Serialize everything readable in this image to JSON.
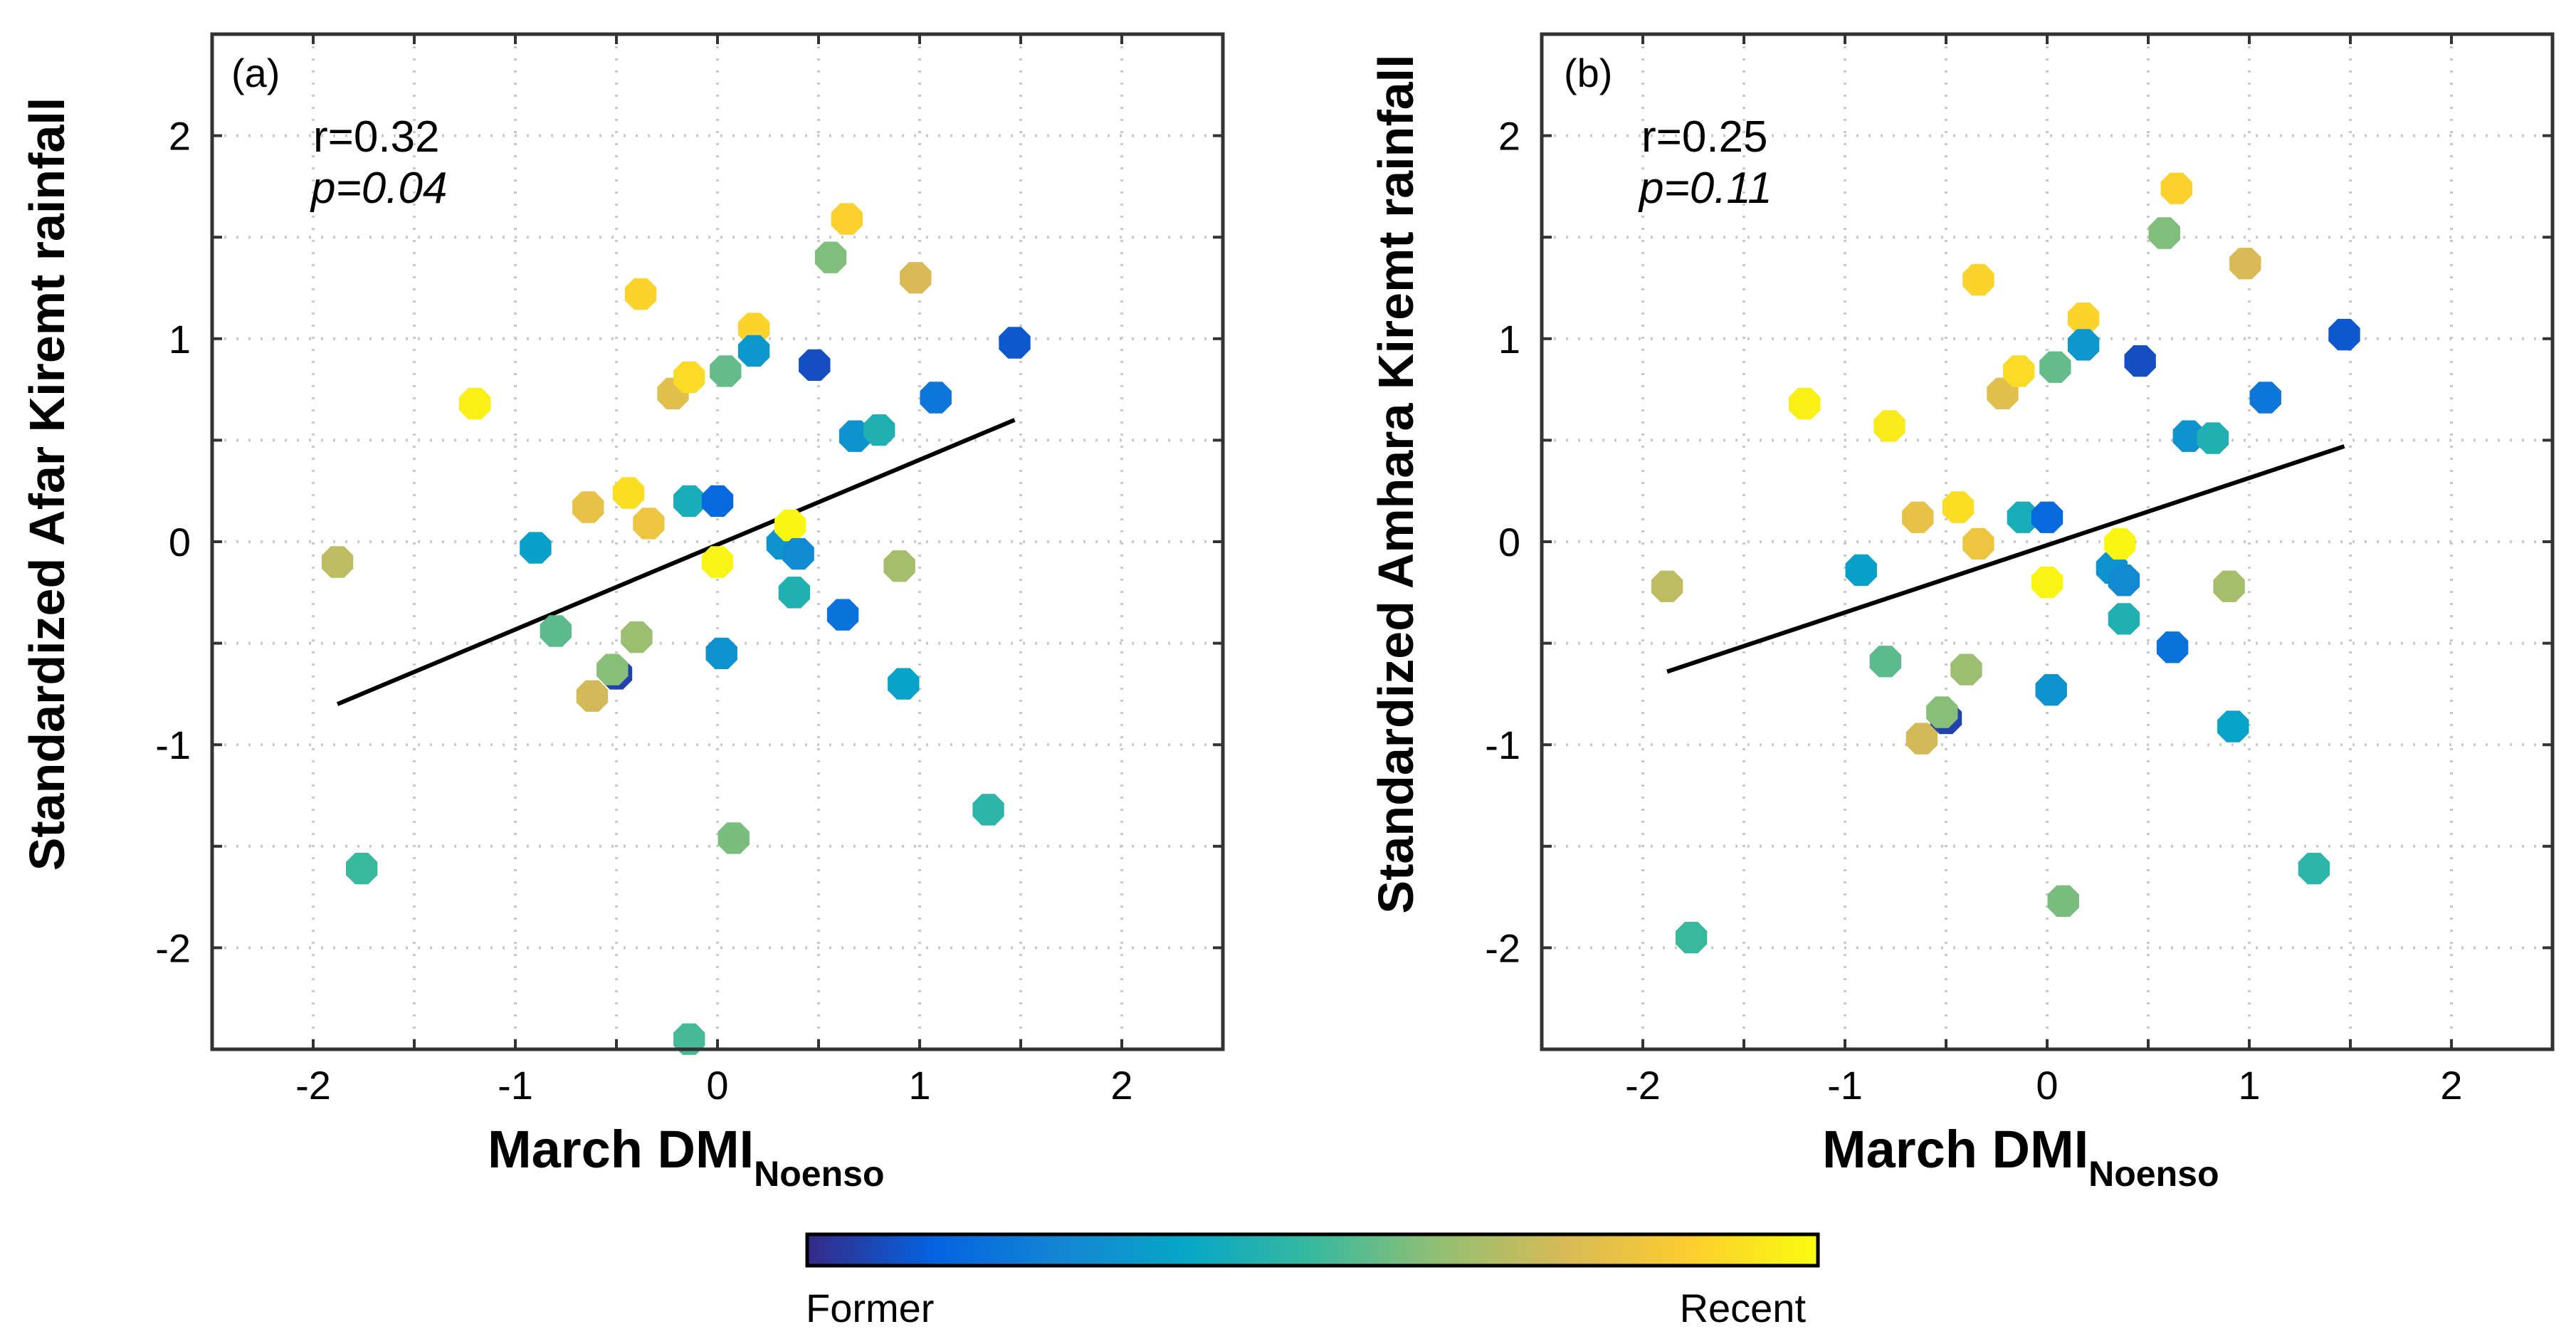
{
  "chart_data": [
    {
      "type": "scatter",
      "panel_label": "(a)",
      "xlabel": "March DMI",
      "xlabel_subscript": "Noenso",
      "ylabel": "Standardized Afar Kiremt rainfall",
      "stats": {
        "r": "r=0.32",
        "p": "p=0.04"
      },
      "xlim": [
        -2.5,
        2.5
      ],
      "ylim": [
        -2.5,
        2.5
      ],
      "xticks": [
        -2,
        -1,
        0,
        1,
        2
      ],
      "yticks": [
        -2,
        -1,
        0,
        1,
        2
      ],
      "grid": true,
      "fit_line": {
        "x": [
          -1.88,
          1.47
        ],
        "y": [
          -0.8,
          0.6
        ]
      },
      "points": [
        {
          "x": -1.88,
          "y": -0.1,
          "t": 0.7
        },
        {
          "x": -1.76,
          "y": -1.61,
          "t": 0.5
        },
        {
          "x": -1.2,
          "y": 0.68,
          "t": 0.97
        },
        {
          "x": -0.9,
          "y": -0.03,
          "t": 0.35
        },
        {
          "x": -0.8,
          "y": -0.44,
          "t": 0.55
        },
        {
          "x": -0.64,
          "y": 0.17,
          "t": 0.8
        },
        {
          "x": -0.62,
          "y": -0.76,
          "t": 0.74
        },
        {
          "x": -0.5,
          "y": -0.65,
          "t": 0.05
        },
        {
          "x": -0.52,
          "y": -0.63,
          "t": 0.61
        },
        {
          "x": -0.44,
          "y": 0.24,
          "t": 0.92
        },
        {
          "x": -0.4,
          "y": -0.47,
          "t": 0.64
        },
        {
          "x": -0.38,
          "y": 1.22,
          "t": 0.89
        },
        {
          "x": -0.34,
          "y": 0.09,
          "t": 0.82
        },
        {
          "x": -0.22,
          "y": 0.73,
          "t": 0.78
        },
        {
          "x": -0.14,
          "y": 0.81,
          "t": 0.91
        },
        {
          "x": -0.14,
          "y": 0.2,
          "t": 0.42
        },
        {
          "x": -0.14,
          "y": -2.45,
          "t": 0.52
        },
        {
          "x": 0.0,
          "y": 0.2,
          "t": 0.15
        },
        {
          "x": 0.0,
          "y": -0.1,
          "t": 0.98
        },
        {
          "x": 0.02,
          "y": -0.55,
          "t": 0.3
        },
        {
          "x": 0.04,
          "y": 0.84,
          "t": 0.56
        },
        {
          "x": 0.08,
          "y": -1.46,
          "t": 0.59
        },
        {
          "x": 0.18,
          "y": 1.05,
          "t": 0.89
        },
        {
          "x": 0.18,
          "y": 0.94,
          "t": 0.32
        },
        {
          "x": 0.32,
          "y": -0.01,
          "t": 0.3
        },
        {
          "x": 0.36,
          "y": 0.08,
          "t": 0.99
        },
        {
          "x": 0.38,
          "y": -0.25,
          "t": 0.44
        },
        {
          "x": 0.4,
          "y": -0.06,
          "t": 0.27
        },
        {
          "x": 0.48,
          "y": 0.87,
          "t": 0.08
        },
        {
          "x": 0.56,
          "y": 1.4,
          "t": 0.6
        },
        {
          "x": 0.62,
          "y": -0.36,
          "t": 0.18
        },
        {
          "x": 0.64,
          "y": 1.59,
          "t": 0.88
        },
        {
          "x": 0.68,
          "y": 0.52,
          "t": 0.3
        },
        {
          "x": 0.8,
          "y": 0.55,
          "t": 0.44
        },
        {
          "x": 0.9,
          "y": -0.12,
          "t": 0.66
        },
        {
          "x": 0.92,
          "y": -0.7,
          "t": 0.36
        },
        {
          "x": 0.98,
          "y": 1.3,
          "t": 0.75
        },
        {
          "x": 1.08,
          "y": 0.71,
          "t": 0.2
        },
        {
          "x": 1.34,
          "y": -1.32,
          "t": 0.47
        },
        {
          "x": 1.47,
          "y": 0.98,
          "t": 0.1
        }
      ]
    },
    {
      "type": "scatter",
      "panel_label": "(b)",
      "xlabel": "March DMI",
      "xlabel_subscript": "Noenso",
      "ylabel": "Standardized Amhara Kiremt rainfall",
      "stats": {
        "r": "r=0.25",
        "p": "p=0.11"
      },
      "xlim": [
        -2.5,
        2.5
      ],
      "ylim": [
        -2.5,
        2.5
      ],
      "xticks": [
        -2,
        -1,
        0,
        1,
        2
      ],
      "yticks": [
        -2,
        -1,
        0,
        1,
        2
      ],
      "grid": true,
      "fit_line": {
        "x": [
          -1.88,
          1.47
        ],
        "y": [
          -0.64,
          0.47
        ]
      },
      "points": [
        {
          "x": -1.88,
          "y": -0.22,
          "t": 0.7
        },
        {
          "x": -1.76,
          "y": -1.95,
          "t": 0.5
        },
        {
          "x": -1.2,
          "y": 0.68,
          "t": 0.97
        },
        {
          "x": -0.92,
          "y": -0.14,
          "t": 0.35
        },
        {
          "x": -0.78,
          "y": 0.57,
          "t": 0.95
        },
        {
          "x": -0.8,
          "y": -0.59,
          "t": 0.55
        },
        {
          "x": -0.64,
          "y": 0.12,
          "t": 0.8
        },
        {
          "x": -0.62,
          "y": -0.97,
          "t": 0.74
        },
        {
          "x": -0.5,
          "y": -0.87,
          "t": 0.05
        },
        {
          "x": -0.52,
          "y": -0.84,
          "t": 0.61
        },
        {
          "x": -0.44,
          "y": 0.17,
          "t": 0.92
        },
        {
          "x": -0.4,
          "y": -0.63,
          "t": 0.64
        },
        {
          "x": -0.34,
          "y": 1.29,
          "t": 0.89
        },
        {
          "x": -0.34,
          "y": -0.01,
          "t": 0.82
        },
        {
          "x": -0.22,
          "y": 0.73,
          "t": 0.78
        },
        {
          "x": -0.14,
          "y": 0.84,
          "t": 0.91
        },
        {
          "x": -0.12,
          "y": 0.12,
          "t": 0.42
        },
        {
          "x": 0.0,
          "y": 0.12,
          "t": 0.15
        },
        {
          "x": 0.0,
          "y": -0.2,
          "t": 0.98
        },
        {
          "x": 0.02,
          "y": -0.73,
          "t": 0.3
        },
        {
          "x": 0.04,
          "y": 0.86,
          "t": 0.56
        },
        {
          "x": 0.08,
          "y": -1.77,
          "t": 0.59
        },
        {
          "x": 0.18,
          "y": 1.1,
          "t": 0.89
        },
        {
          "x": 0.18,
          "y": 0.97,
          "t": 0.32
        },
        {
          "x": 0.32,
          "y": -0.13,
          "t": 0.3
        },
        {
          "x": 0.36,
          "y": -0.01,
          "t": 0.99
        },
        {
          "x": 0.38,
          "y": -0.38,
          "t": 0.44
        },
        {
          "x": 0.38,
          "y": -0.19,
          "t": 0.27
        },
        {
          "x": 0.46,
          "y": 0.89,
          "t": 0.08
        },
        {
          "x": 0.58,
          "y": 1.52,
          "t": 0.6
        },
        {
          "x": 0.62,
          "y": -0.52,
          "t": 0.18
        },
        {
          "x": 0.64,
          "y": 1.74,
          "t": 0.88
        },
        {
          "x": 0.7,
          "y": 0.52,
          "t": 0.3
        },
        {
          "x": 0.82,
          "y": 0.51,
          "t": 0.44
        },
        {
          "x": 0.9,
          "y": -0.22,
          "t": 0.66
        },
        {
          "x": 0.92,
          "y": -0.91,
          "t": 0.36
        },
        {
          "x": 0.98,
          "y": 1.37,
          "t": 0.75
        },
        {
          "x": 1.08,
          "y": 0.71,
          "t": 0.2
        },
        {
          "x": 1.32,
          "y": -1.61,
          "t": 0.47
        },
        {
          "x": 1.47,
          "y": 1.02,
          "t": 0.1
        }
      ]
    }
  ],
  "colorbar": {
    "label_left": "Former",
    "label_right": "Recent",
    "colors": [
      "#352a87",
      "#0363e1",
      "#1485d4",
      "#06a7c6",
      "#38b99e",
      "#92bf73",
      "#d9ba56",
      "#fcce2e",
      "#f9fb0e"
    ]
  }
}
